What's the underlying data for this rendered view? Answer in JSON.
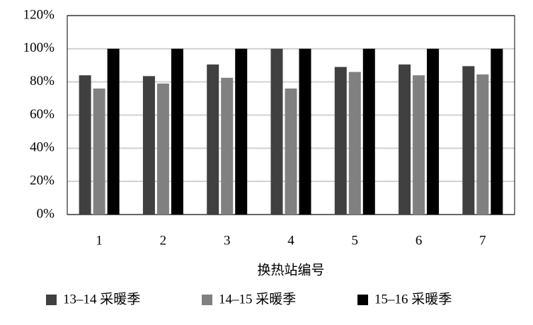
{
  "chart_data": {
    "type": "bar",
    "x_label": "换热站编号",
    "categories": [
      "1",
      "2",
      "3",
      "4",
      "5",
      "6",
      "7"
    ],
    "series": [
      {
        "name": "13–14 采暖季",
        "color": "#404040",
        "values": [
          84,
          83.5,
          90.5,
          100,
          89,
          90.5,
          89.5
        ]
      },
      {
        "name": "14–15 采暖季",
        "color": "#808080",
        "values": [
          76,
          79,
          82.5,
          76,
          86,
          84,
          84.5
        ]
      },
      {
        "name": "15–16 采暖季",
        "color": "#000000",
        "values": [
          100,
          100,
          100,
          100,
          100,
          100,
          100
        ]
      }
    ],
    "ylim": [
      0,
      120
    ],
    "yticks": [
      {
        "value": 0,
        "label": "0%"
      },
      {
        "value": 20,
        "label": "20%"
      },
      {
        "value": 40,
        "label": "40%"
      },
      {
        "value": 60,
        "label": "60%"
      },
      {
        "value": 80,
        "label": "80%"
      },
      {
        "value": 100,
        "label": "100%"
      },
      {
        "value": 120,
        "label": "120%"
      }
    ],
    "grid": true
  }
}
